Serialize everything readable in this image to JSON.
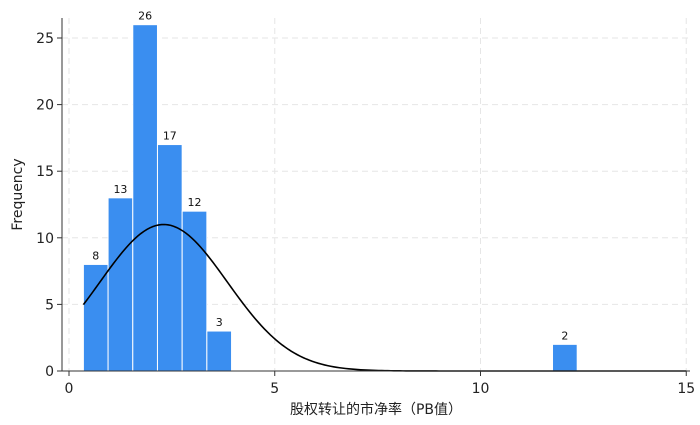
{
  "chart_data": {
    "type": "bar",
    "xlabel": "股权转让的市净率（PB值）",
    "ylabel": "Frequency",
    "xlim": [
      0,
      15
    ],
    "ylim": [
      0,
      27
    ],
    "grid": true,
    "x_ticks": [
      "0",
      "5",
      "10",
      "15"
    ],
    "y_ticks": [
      "0",
      "5",
      "10",
      "15",
      "20",
      "25"
    ],
    "bars": [
      {
        "x0": 0.35,
        "x1": 0.95,
        "value": 8,
        "label": "8"
      },
      {
        "x0": 0.95,
        "x1": 1.55,
        "value": 13,
        "label": "13"
      },
      {
        "x0": 1.55,
        "x1": 2.15,
        "value": 26,
        "label": "26"
      },
      {
        "x0": 2.15,
        "x1": 2.75,
        "value": 17,
        "label": "17"
      },
      {
        "x0": 2.75,
        "x1": 3.35,
        "value": 12,
        "label": "12"
      },
      {
        "x0": 3.35,
        "x1": 3.95,
        "value": 3,
        "label": "3"
      },
      {
        "x0": 11.75,
        "x1": 12.35,
        "value": 2,
        "label": "2"
      }
    ],
    "density_curve": {
      "type": "normal",
      "mean": 2.3,
      "sd": 1.55,
      "x_range": [
        0.35,
        15
      ],
      "peak_value": 11
    },
    "colors": {
      "bar": "#3a8ef0",
      "bar_edge": "#ffffff",
      "curve": "#000000",
      "grid": "#e6e6e6"
    }
  }
}
